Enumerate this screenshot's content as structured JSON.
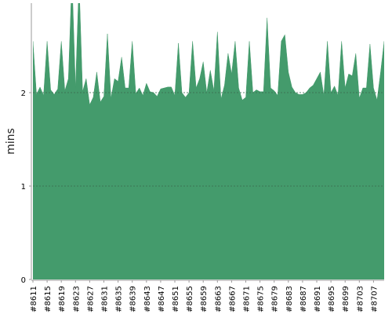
{
  "chart_data": {
    "type": "area",
    "title": "",
    "xlabel": "",
    "ylabel": "mins",
    "ylim": [
      0,
      2.9
    ],
    "yticks": [
      0,
      1,
      2
    ],
    "grid": true,
    "legend": "none",
    "colors": {
      "area": "#449b6c",
      "axis": "#999999",
      "grid": "#3a6e50"
    },
    "x_tick_labels": [
      "#8611",
      "#8615",
      "#8619",
      "#8623",
      "#8627",
      "#8631",
      "#8635",
      "#8639",
      "#8643",
      "#8647",
      "#8651",
      "#8655",
      "#8659",
      "#8663",
      "#8667",
      "#8671",
      "#8675",
      "#8679",
      "#8683",
      "#8687",
      "#8691",
      "#8695",
      "#8699",
      "#8703",
      "#8707"
    ],
    "x_start": 8611,
    "series": [
      {
        "x": [
          8611,
          8612,
          8613,
          8614,
          8615,
          8616,
          8617,
          8618,
          8619,
          8620,
          8621,
          8622,
          8623,
          8624,
          8625,
          8626,
          8627,
          8628,
          8629,
          8630,
          8631,
          8632,
          8633,
          8634,
          8635,
          8636,
          8637,
          8638,
          8639,
          8640,
          8641,
          8642,
          8643,
          8644,
          8645,
          8646,
          8647,
          8648,
          8649,
          8650,
          8651,
          8652,
          8653,
          8654,
          8655,
          8656,
          8657,
          8658,
          8659,
          8660,
          8661,
          8662,
          8663,
          8664,
          8665,
          8666,
          8667,
          8668,
          8669,
          8670,
          8671,
          8672,
          8673,
          8674,
          8675,
          8676,
          8677,
          8678,
          8679,
          8680,
          8681,
          8682,
          8683,
          8684,
          8685,
          8686,
          8687,
          8688,
          8689,
          8690,
          8691,
          8692,
          8693,
          8694,
          8695,
          8696,
          8697,
          8698,
          8699,
          8700,
          8701,
          8702,
          8703,
          8704,
          8705,
          8706,
          8707,
          8708,
          8709,
          8710
        ],
        "values": [
          2.55,
          1.98,
          2.06,
          1.97,
          2.55,
          2.03,
          1.98,
          2.04,
          2.55,
          2.02,
          2.15,
          3.25,
          2.05,
          3.2,
          2.01,
          2.15,
          1.87,
          1.95,
          2.22,
          1.9,
          1.96,
          2.63,
          1.94,
          2.15,
          2.12,
          2.38,
          2.05,
          2.05,
          2.55,
          1.99,
          2.05,
          1.97,
          2.1,
          2.01,
          2.0,
          1.96,
          2.04,
          2.05,
          2.06,
          2.06,
          1.97,
          2.53,
          2.0,
          1.95,
          2.0,
          2.55,
          2.05,
          2.15,
          2.33,
          2.0,
          2.24,
          2.02,
          2.65,
          1.93,
          2.08,
          2.42,
          2.2,
          2.55,
          2.05,
          1.92,
          1.95,
          2.55,
          2.0,
          2.03,
          2.01,
          2.01,
          2.8,
          2.05,
          2.02,
          1.97,
          2.55,
          2.62,
          2.22,
          2.06,
          2.0,
          1.98,
          1.98,
          2.0,
          2.05,
          2.08,
          2.15,
          2.22,
          1.97,
          2.55,
          2.0,
          2.07,
          1.97,
          2.55,
          2.05,
          2.2,
          2.18,
          2.42,
          1.94,
          2.05,
          2.05,
          2.52,
          2.05,
          1.92,
          2.22,
          2.55
        ]
      }
    ]
  }
}
